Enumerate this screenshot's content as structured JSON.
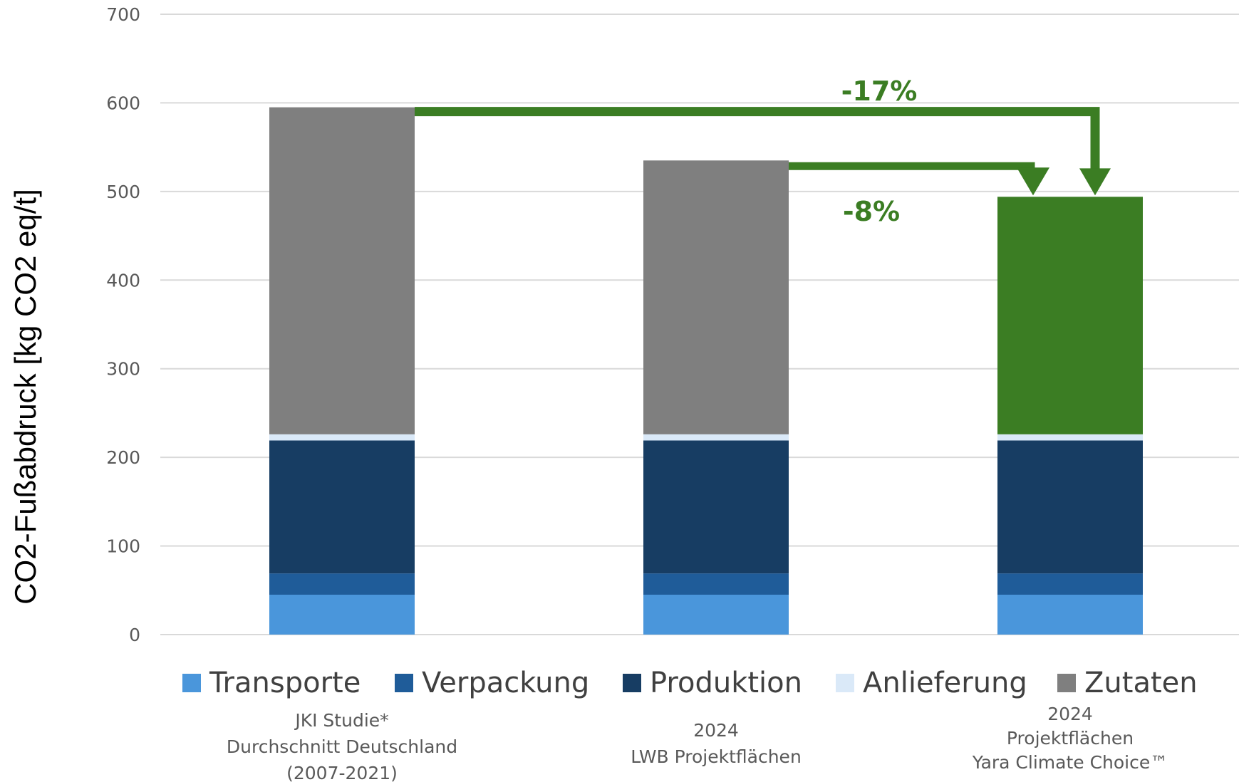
{
  "chart_data": {
    "type": "bar",
    "stacked": true,
    "ylabel": "CO2-Fußabdruck [kg CO2 eq/t]",
    "xlabel": "",
    "ylim": [
      0,
      700
    ],
    "yticks": [
      "0",
      "100",
      "200",
      "300",
      "400",
      "500",
      "600",
      "700"
    ],
    "grid": true,
    "legend_position": "bottom",
    "categories": [
      [
        "JKI Studie*",
        "Durchschnitt Deutschland",
        "(2007-2021)"
      ],
      [
        "2024",
        "LWB Projektflächen"
      ],
      [
        "2024",
        "Projektflächen",
        "Yara Climate Choice™"
      ]
    ],
    "series": [
      {
        "name": "Transporte",
        "color": "#4a96db",
        "values": [
          45,
          45,
          45
        ]
      },
      {
        "name": "Verpackung",
        "color": "#1f5c99",
        "values": [
          24,
          24,
          24
        ]
      },
      {
        "name": "Produktion",
        "color": "#173d63",
        "values": [
          150,
          150,
          150
        ]
      },
      {
        "name": "Anlieferung",
        "color": "#dae9f8",
        "values": [
          7,
          7,
          7
        ]
      },
      {
        "name": "Zutaten",
        "color": "#7f7f7f",
        "values": [
          369,
          309,
          268
        ]
      }
    ],
    "highlight_color": "#3b7d23",
    "annotations": [
      {
        "text": "-17%",
        "from_category": 0,
        "to_category": 2
      },
      {
        "text": "-8%",
        "from_category": 1,
        "to_category": 2
      }
    ]
  }
}
